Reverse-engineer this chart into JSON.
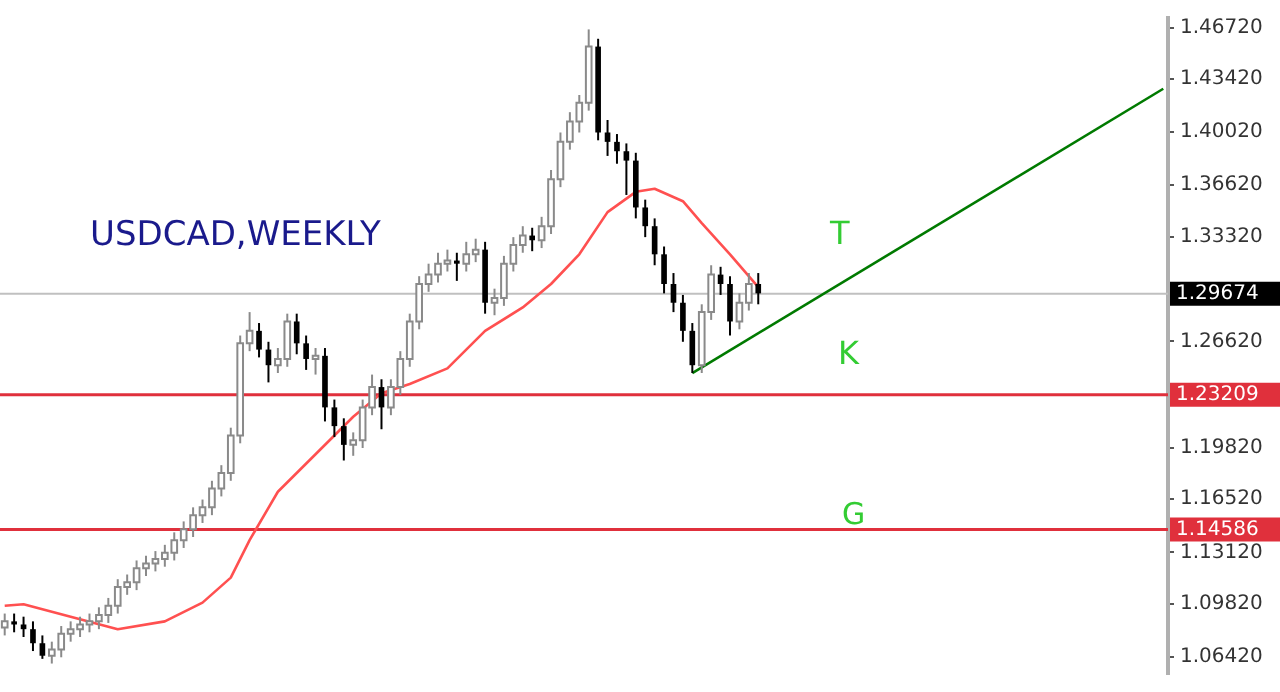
{
  "chart_data": {
    "type": "candlestick",
    "categories": [
      null,
      null,
      null,
      null,
      null,
      null,
      null,
      null,
      null,
      null,
      null,
      null,
      null,
      null,
      null,
      null,
      null,
      null,
      null,
      null,
      null,
      null,
      null,
      null,
      null,
      null,
      null,
      null,
      null,
      null,
      null,
      null,
      null,
      null,
      null,
      null,
      null,
      null,
      null,
      null,
      null,
      null,
      null,
      null,
      null,
      null,
      null,
      null,
      null,
      null,
      null,
      null,
      null,
      null,
      null,
      null,
      null,
      null,
      null,
      null,
      null,
      null,
      null,
      null,
      null,
      null,
      null,
      null,
      null,
      null,
      null,
      null,
      null,
      null,
      null,
      null,
      null,
      null,
      null,
      null,
      null,
      null,
      null,
      null,
      null,
      null,
      null,
      null,
      null,
      null,
      null,
      null,
      null,
      null,
      null,
      null,
      null,
      null,
      null,
      null,
      null,
      null,
      null,
      null,
      null,
      null,
      null,
      null,
      null,
      null,
      null,
      null,
      null,
      null,
      null,
      null,
      null,
      null,
      null,
      null,
      null,
      null,
      null,
      null
    ],
    "ohlc": [
      [
        1.083,
        1.092,
        1.078,
        1.087
      ],
      [
        1.087,
        1.092,
        1.08,
        1.085
      ],
      [
        1.085,
        1.09,
        1.077,
        1.082
      ],
      [
        1.082,
        1.087,
        1.068,
        1.073
      ],
      [
        1.073,
        1.078,
        1.063,
        1.065
      ],
      [
        1.065,
        1.074,
        1.06,
        1.069
      ],
      [
        1.069,
        1.084,
        1.064,
        1.079
      ],
      [
        1.079,
        1.087,
        1.074,
        1.082
      ],
      [
        1.082,
        1.09,
        1.077,
        1.085
      ],
      [
        1.085,
        1.092,
        1.08,
        1.087
      ],
      [
        1.087,
        1.096,
        1.082,
        1.091
      ],
      [
        1.091,
        1.102,
        1.086,
        1.097
      ],
      [
        1.097,
        1.114,
        1.092,
        1.109
      ],
      [
        1.109,
        1.117,
        1.104,
        1.112
      ],
      [
        1.112,
        1.126,
        1.107,
        1.121
      ],
      [
        1.121,
        1.129,
        1.116,
        1.124
      ],
      [
        1.124,
        1.132,
        1.119,
        1.127
      ],
      [
        1.127,
        1.136,
        1.122,
        1.131
      ],
      [
        1.131,
        1.144,
        1.126,
        1.139
      ],
      [
        1.139,
        1.151,
        1.134,
        1.146
      ],
      [
        1.146,
        1.16,
        1.141,
        1.155
      ],
      [
        1.155,
        1.165,
        1.15,
        1.16
      ],
      [
        1.16,
        1.177,
        1.155,
        1.172
      ],
      [
        1.172,
        1.187,
        1.167,
        1.182
      ],
      [
        1.182,
        1.211,
        1.177,
        1.206
      ],
      [
        1.206,
        1.27,
        1.201,
        1.265
      ],
      [
        1.265,
        1.285,
        1.26,
        1.273
      ],
      [
        1.273,
        1.278,
        1.256,
        1.261
      ],
      [
        1.261,
        1.266,
        1.24,
        1.251
      ],
      [
        1.251,
        1.262,
        1.246,
        1.255
      ],
      [
        1.255,
        1.284,
        1.25,
        1.279
      ],
      [
        1.279,
        1.284,
        1.258,
        1.265
      ],
      [
        1.265,
        1.27,
        1.248,
        1.255
      ],
      [
        1.255,
        1.262,
        1.245,
        1.257
      ],
      [
        1.257,
        1.262,
        1.215,
        1.224
      ],
      [
        1.224,
        1.229,
        1.205,
        1.212
      ],
      [
        1.212,
        1.217,
        1.19,
        1.2
      ],
      [
        1.2,
        1.208,
        1.193,
        1.203
      ],
      [
        1.203,
        1.229,
        1.198,
        1.224
      ],
      [
        1.224,
        1.245,
        1.219,
        1.237
      ],
      [
        1.237,
        1.242,
        1.21,
        1.224
      ],
      [
        1.224,
        1.242,
        1.219,
        1.237
      ],
      [
        1.237,
        1.26,
        1.232,
        1.255
      ],
      [
        1.255,
        1.284,
        1.25,
        1.279
      ],
      [
        1.279,
        1.308,
        1.274,
        1.303
      ],
      [
        1.303,
        1.316,
        1.298,
        1.309
      ],
      [
        1.309,
        1.323,
        1.304,
        1.316
      ],
      [
        1.316,
        1.325,
        1.311,
        1.318
      ],
      [
        1.318,
        1.323,
        1.305,
        1.316
      ],
      [
        1.316,
        1.33,
        1.311,
        1.322
      ],
      [
        1.322,
        1.332,
        1.317,
        1.325
      ],
      [
        1.325,
        1.33,
        1.284,
        1.291
      ],
      [
        1.291,
        1.3,
        1.283,
        1.294
      ],
      [
        1.294,
        1.321,
        1.289,
        1.316
      ],
      [
        1.316,
        1.333,
        1.311,
        1.328
      ],
      [
        1.328,
        1.34,
        1.323,
        1.334
      ],
      [
        1.334,
        1.339,
        1.324,
        1.331
      ],
      [
        1.331,
        1.346,
        1.326,
        1.34
      ],
      [
        1.34,
        1.376,
        1.335,
        1.37
      ],
      [
        1.37,
        1.4,
        1.365,
        1.394
      ],
      [
        1.394,
        1.413,
        1.389,
        1.407
      ],
      [
        1.407,
        1.424,
        1.4,
        1.419
      ],
      [
        1.419,
        1.466,
        1.414,
        1.455
      ],
      [
        1.455,
        1.46,
        1.395,
        1.4
      ],
      [
        1.4,
        1.408,
        1.385,
        1.394
      ],
      [
        1.394,
        1.399,
        1.38,
        1.388
      ],
      [
        1.388,
        1.393,
        1.36,
        1.382
      ],
      [
        1.382,
        1.387,
        1.345,
        1.352
      ],
      [
        1.352,
        1.357,
        1.333,
        1.34
      ],
      [
        1.34,
        1.345,
        1.315,
        1.322
      ],
      [
        1.322,
        1.327,
        1.297,
        1.303
      ],
      [
        1.303,
        1.31,
        1.285,
        1.291
      ],
      [
        1.291,
        1.296,
        1.266,
        1.273
      ],
      [
        1.273,
        1.278,
        1.246,
        1.251
      ],
      [
        1.251,
        1.29,
        1.246,
        1.285
      ],
      [
        1.285,
        1.315,
        1.28,
        1.309
      ],
      [
        1.309,
        1.314,
        1.296,
        1.303
      ],
      [
        1.303,
        1.308,
        1.27,
        1.279
      ],
      [
        1.279,
        1.297,
        1.274,
        1.291
      ],
      [
        1.291,
        1.31,
        1.286,
        1.303
      ],
      [
        1.303,
        1.31,
        1.29,
        1.297
      ],
      null,
      null,
      null,
      null,
      null,
      null,
      null,
      null,
      null,
      null,
      null,
      null,
      null,
      null,
      null,
      null,
      null,
      null,
      null,
      null,
      null,
      null,
      null,
      null,
      null,
      null,
      null,
      null,
      null,
      null,
      null,
      null,
      null,
      null,
      null,
      null,
      null,
      null,
      null,
      null,
      null,
      null,
      null
    ],
    "series": [
      {
        "type": "line",
        "color": "#ff5050",
        "values": [
          1.097,
          null,
          1.098,
          null,
          null,
          null,
          null,
          1.09,
          null,
          null,
          null,
          null,
          1.082,
          null,
          null,
          null,
          null,
          1.087,
          null,
          null,
          null,
          1.099,
          null,
          null,
          1.115,
          null,
          1.139,
          null,
          null,
          1.17,
          null,
          null,
          null,
          1.194,
          null,
          null,
          null,
          1.218,
          null,
          null,
          1.233,
          null,
          null,
          1.239,
          null,
          null,
          null,
          1.249,
          null,
          null,
          null,
          1.273,
          null,
          null,
          null,
          1.288,
          null,
          null,
          1.303,
          null,
          null,
          1.322,
          null,
          null,
          1.349,
          null,
          null,
          1.362,
          null,
          1.364,
          null,
          null,
          1.356,
          null,
          1.342,
          null,
          null,
          1.322,
          null,
          null,
          1.301,
          null,
          null,
          null,
          null,
          null,
          null,
          null,
          null,
          null,
          null,
          null,
          null,
          null,
          null,
          null,
          null,
          null,
          null,
          null,
          null,
          null,
          null,
          null,
          null,
          null,
          null,
          null,
          null,
          null,
          null,
          null,
          null,
          null,
          null,
          null,
          null,
          null,
          null,
          null,
          null,
          null,
          null,
          null
        ]
      },
      {
        "type": "line",
        "color": "#007a00",
        "values": [
          null,
          null,
          null,
          null,
          null,
          null,
          null,
          null,
          null,
          null,
          null,
          null,
          null,
          null,
          null,
          null,
          null,
          null,
          null,
          null,
          null,
          null,
          null,
          null,
          null,
          null,
          null,
          null,
          null,
          null,
          null,
          null,
          null,
          null,
          null,
          null,
          null,
          null,
          null,
          null,
          null,
          null,
          null,
          null,
          null,
          null,
          null,
          null,
          null,
          null,
          null,
          null,
          null,
          null,
          null,
          null,
          null,
          null,
          null,
          null,
          null,
          null,
          null,
          null,
          null,
          null,
          null,
          null,
          null,
          null,
          null,
          null,
          null,
          1.246,
          null,
          null,
          null,
          null,
          null,
          null,
          null,
          null,
          null,
          null,
          null,
          null,
          null,
          null,
          null,
          null,
          null,
          null,
          null,
          null,
          null,
          null,
          null,
          null,
          null,
          null,
          null,
          null,
          null,
          null,
          null,
          null,
          null,
          null,
          null,
          null,
          null,
          null,
          null,
          null,
          null,
          null,
          null,
          null,
          null,
          null,
          null,
          null,
          null,
          1.428
        ]
      }
    ],
    "ylim": [
      1.0533,
      1.4733
    ],
    "yticks": [
      {
        "value": 1.0642,
        "label": "1.06420"
      },
      {
        "value": 1.0982,
        "label": "1.09820"
      },
      {
        "value": 1.1312,
        "label": "1.13120"
      },
      {
        "value": 1.1652,
        "label": "1.16520"
      },
      {
        "value": 1.1982,
        "label": "1.19820"
      },
      {
        "value": 1.2662,
        "label": "1.26620"
      },
      {
        "value": 1.3332,
        "label": "1.33320"
      },
      {
        "value": 1.3662,
        "label": "1.36620"
      },
      {
        "value": 1.4002,
        "label": "1.40020"
      },
      {
        "value": 1.4342,
        "label": "1.43420"
      },
      {
        "value": 1.4672,
        "label": "1.46720"
      }
    ],
    "ref_lines": [
      {
        "axis": "y",
        "value": 1.29674,
        "label": "1.29674",
        "color": "#c0c0c0"
      },
      {
        "axis": "y",
        "value": 1.23209,
        "label": "1.23209",
        "color": "#e0303c"
      },
      {
        "axis": "y",
        "value": 1.14586,
        "label": "1.14586",
        "color": "#e0303c"
      }
    ],
    "annotations": [
      "USDCAD,WEEKLY",
      "T",
      "K",
      "G"
    ],
    "tick_labels": "y",
    "grid": false,
    "legend": false
  }
}
